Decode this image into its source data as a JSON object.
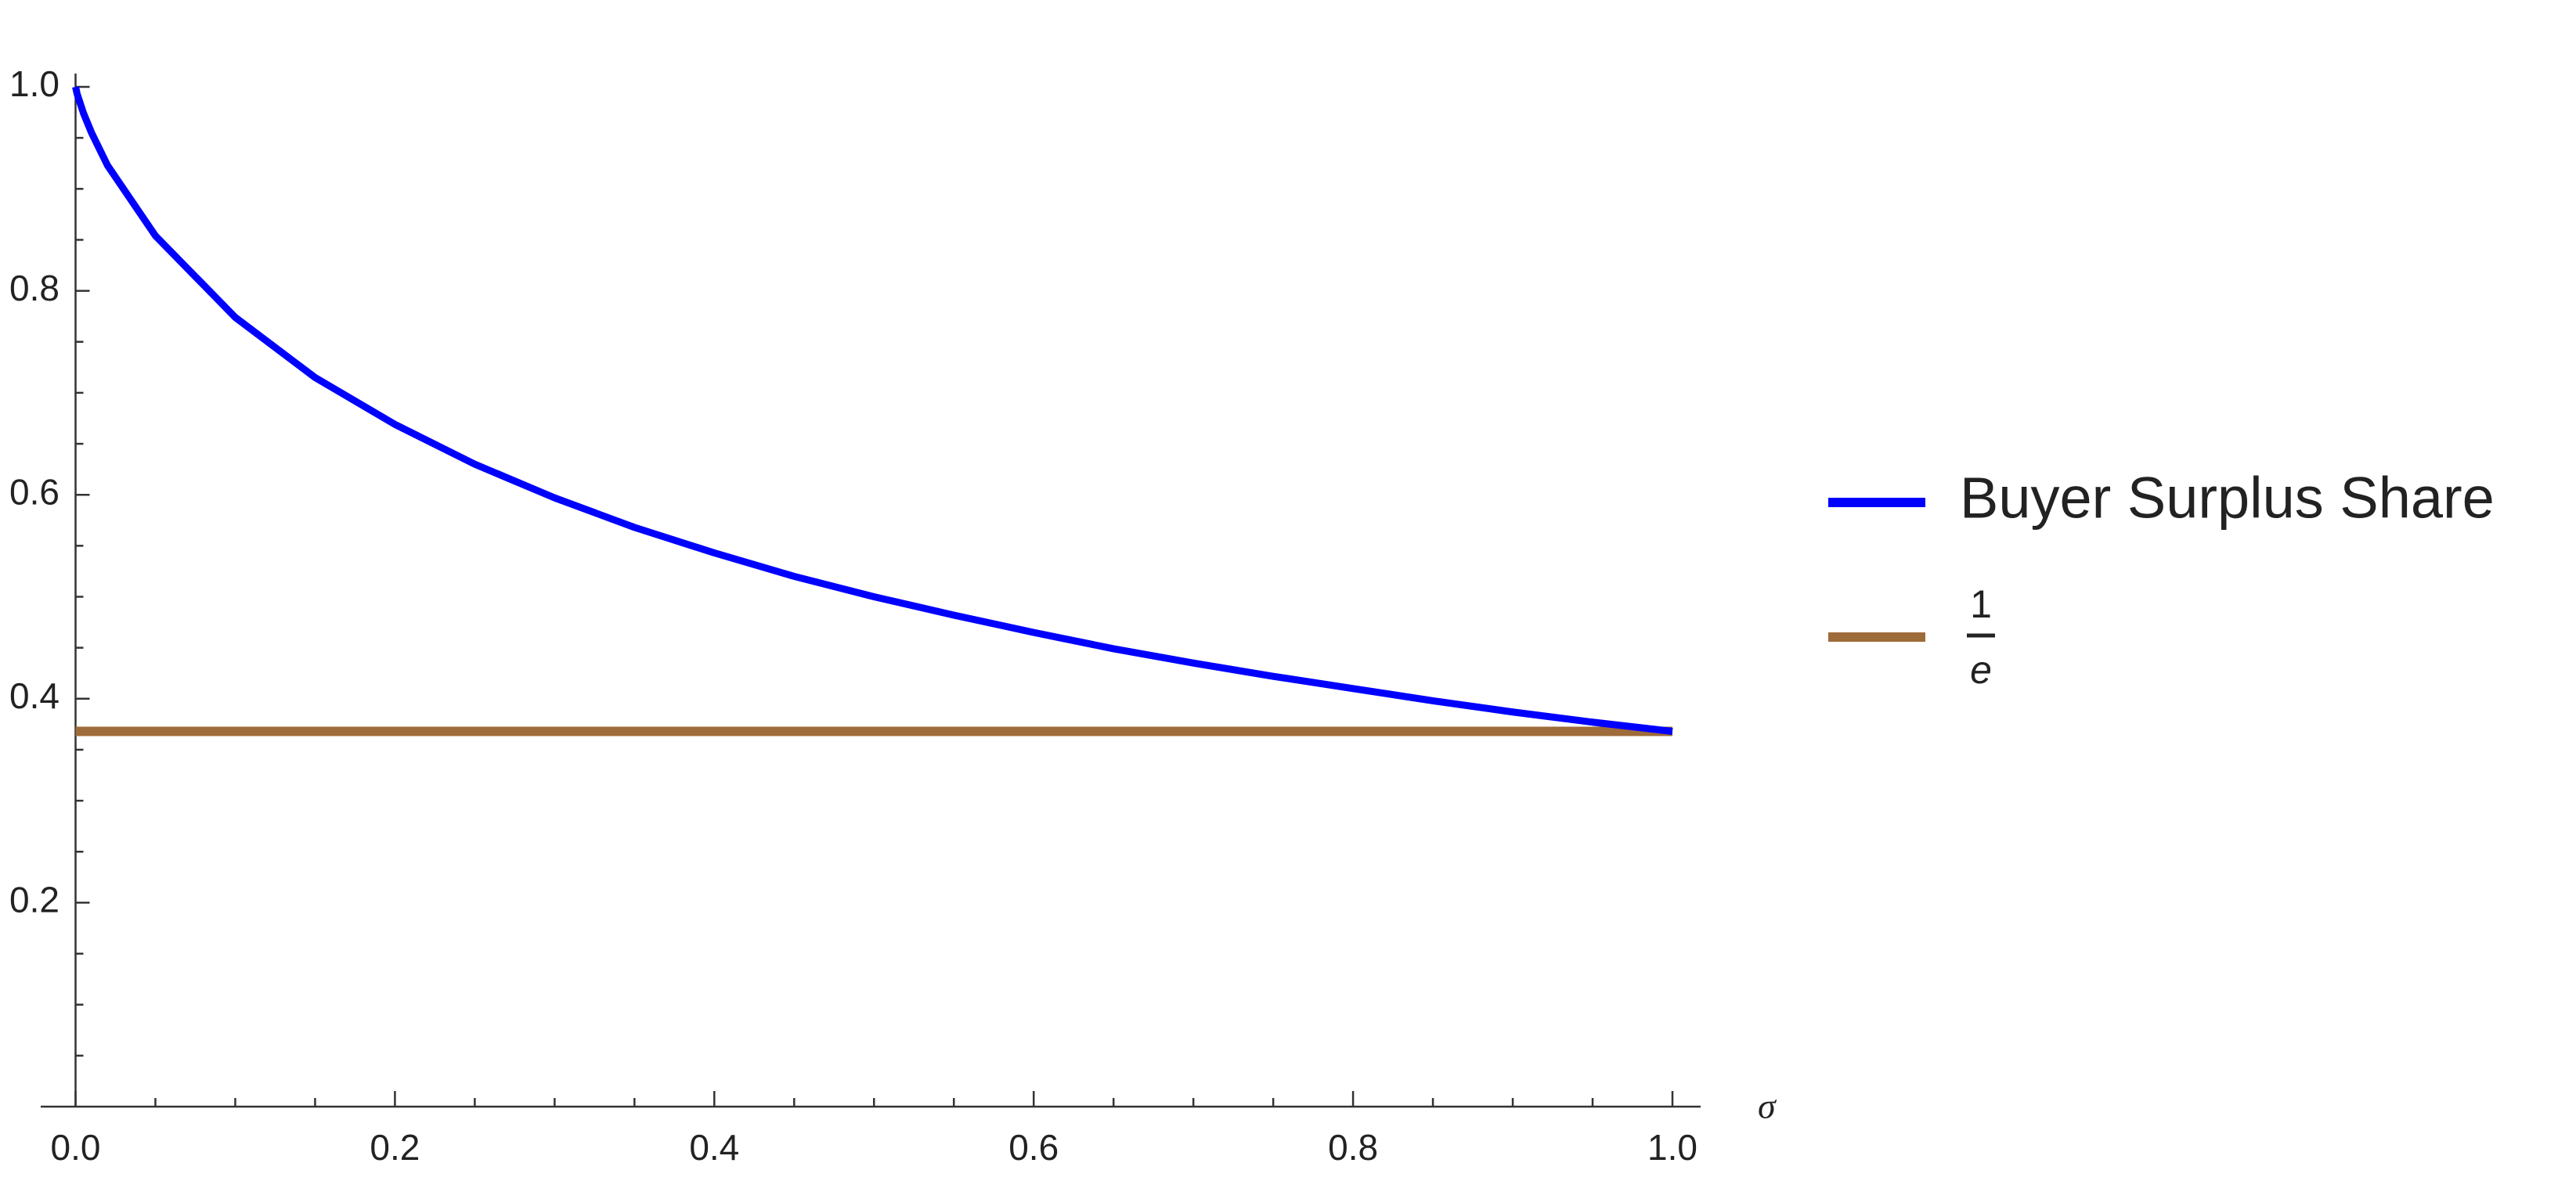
{
  "chart_data": {
    "type": "line",
    "x_label": "σ",
    "xlim": [
      0,
      1
    ],
    "ylim": [
      0,
      1
    ],
    "xticks": [
      {
        "value": 0,
        "label": "0.0"
      },
      0.2,
      0.4,
      0.6,
      0.8,
      {
        "value": 1,
        "label": "1.0"
      }
    ],
    "yticks": [
      0.2,
      0.4,
      0.6,
      0.8,
      {
        "value": 1,
        "label": "1.0"
      }
    ],
    "xminorticks": [
      0.05,
      0.1,
      0.15,
      0.25,
      0.3,
      0.35,
      0.45,
      0.5,
      0.55,
      0.65,
      0.7,
      0.75,
      0.85,
      0.9,
      0.95
    ],
    "yminorticks": [
      0.05,
      0.1,
      0.15,
      0.25,
      0.3,
      0.35,
      0.45,
      0.5,
      0.55,
      0.65,
      0.7,
      0.75,
      0.85,
      0.9,
      0.95
    ],
    "series": [
      {
        "name": "Buyer Surplus Share",
        "color": "#0000ff",
        "x": [
          0,
          0.001,
          0.005,
          0.01,
          0.02,
          0.05,
          0.1,
          0.15,
          0.2,
          0.25,
          0.3,
          0.35,
          0.4,
          0.45,
          0.5,
          0.55,
          0.6,
          0.65,
          0.7,
          0.75,
          0.8,
          0.85,
          0.9,
          0.95,
          1
        ],
        "values": [
          1,
          0.993,
          0.974,
          0.955,
          0.923,
          0.854,
          0.774,
          0.715,
          0.669,
          0.63,
          0.597,
          0.568,
          0.543,
          0.52,
          0.5,
          0.482,
          0.465,
          0.449,
          0.435,
          0.422,
          0.41,
          0.398,
          0.387,
          0.377,
          0.368
        ]
      },
      {
        "name": {
          "numerator": "1",
          "denominator": "e"
        },
        "color": "#9e6b3a",
        "x": [
          0,
          1
        ],
        "values": [
          0.368,
          0.368
        ]
      }
    ]
  }
}
